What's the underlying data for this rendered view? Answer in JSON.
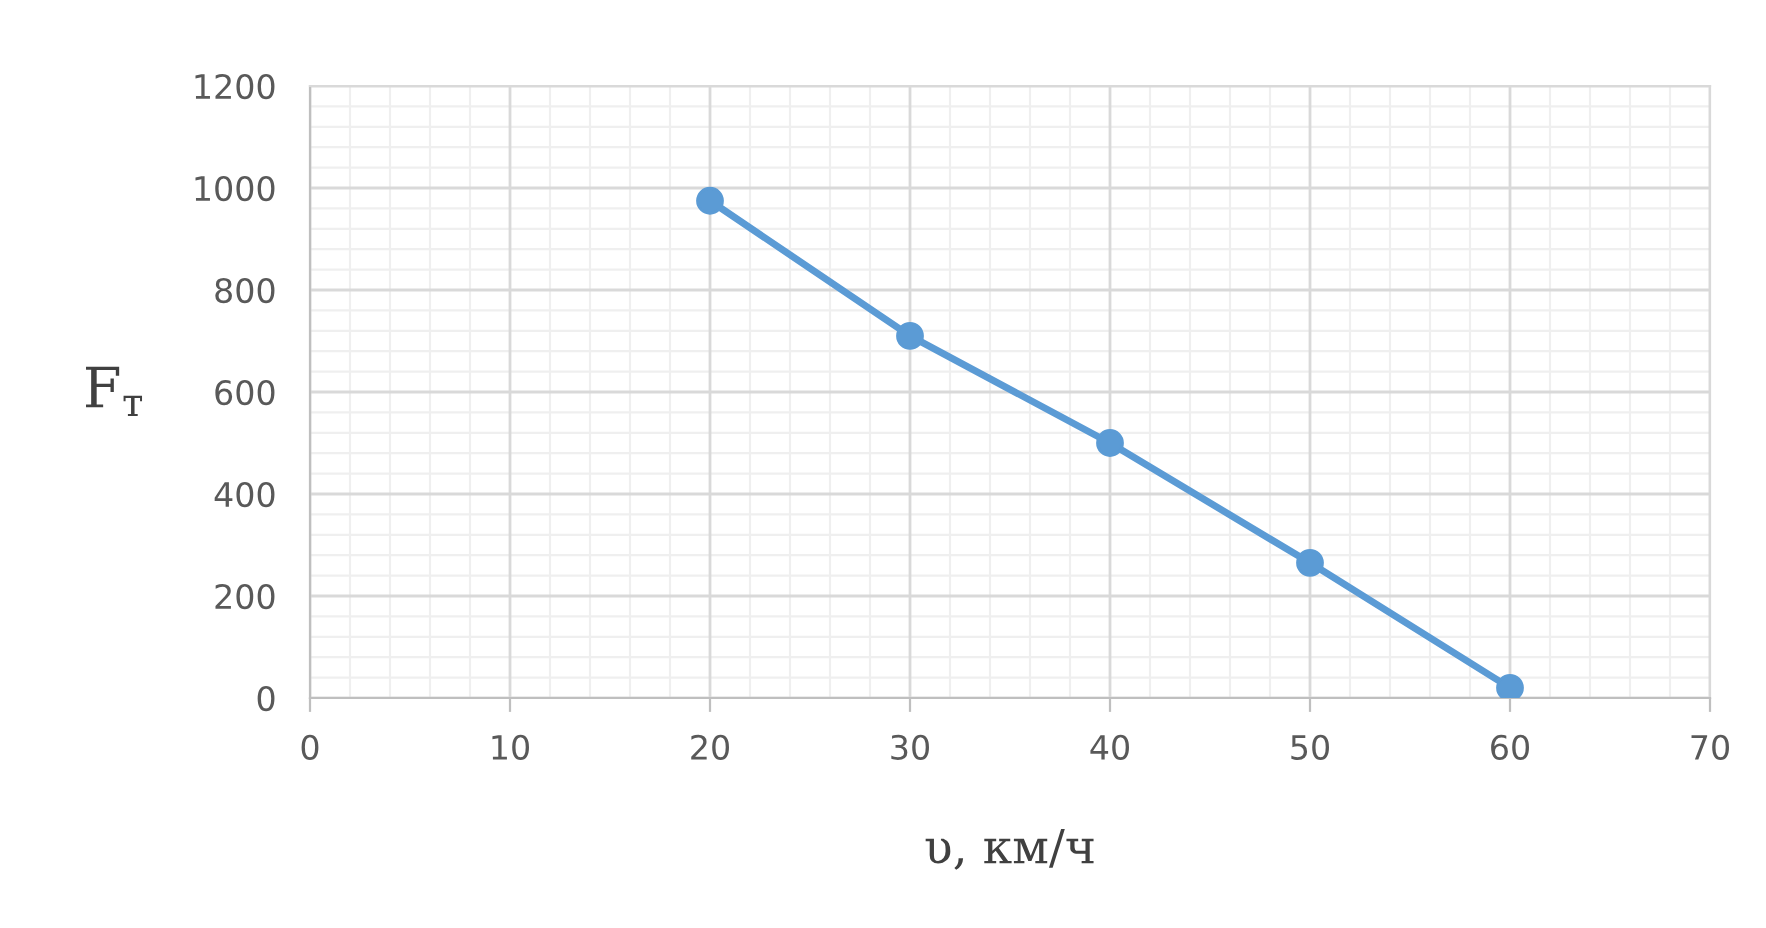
{
  "chart_data": {
    "type": "line",
    "xlabel": "υ, км/ч",
    "ylabel": "F$_{т}$",
    "x": [
      20,
      30,
      40,
      50,
      60
    ],
    "series": [
      {
        "color": "#5b9bd5",
        "values": [
          975,
          710,
          500,
          265,
          20
        ]
      }
    ],
    "xlim": [
      0,
      70
    ],
    "xticks": [
      0,
      10,
      20,
      30,
      40,
      50,
      60,
      70
    ],
    "ylim": [
      0,
      1200
    ],
    "yticks": [
      0,
      200,
      400,
      600,
      800,
      1000,
      1200
    ],
    "grid": true,
    "marker": "circle",
    "line_style": "solid",
    "legend": false
  }
}
